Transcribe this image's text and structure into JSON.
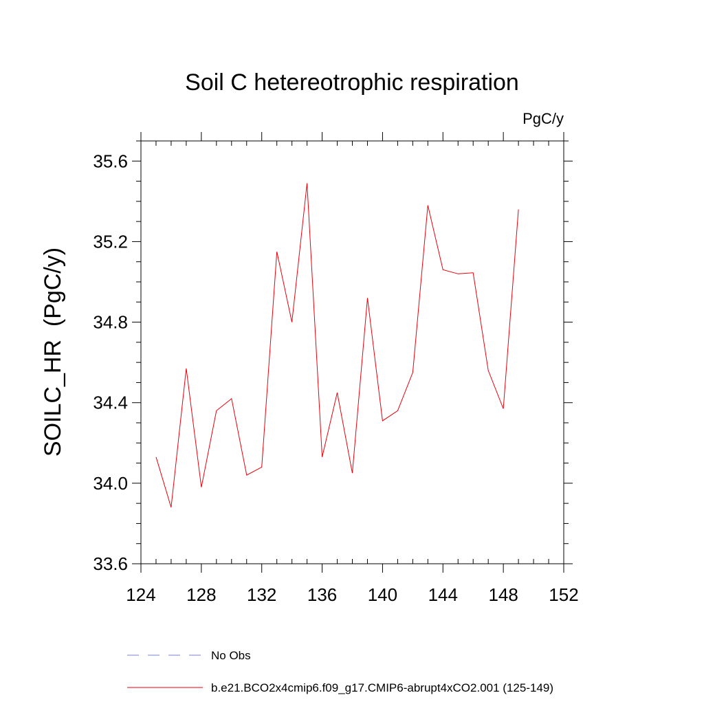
{
  "chart_data": {
    "type": "line",
    "title": "Soil C hetereotrophic respiration",
    "units_label": "PgC/y",
    "xlabel": "",
    "ylabel": "SOILC_HR  (PgC/y)",
    "xlim": [
      124,
      152
    ],
    "ylim": [
      33.6,
      35.7
    ],
    "x_ticks": [
      124,
      128,
      132,
      136,
      140,
      144,
      148,
      152
    ],
    "x_tick_labels": [
      "124",
      "128",
      "132",
      "136",
      "140",
      "144",
      "148",
      "152"
    ],
    "y_ticks": [
      33.6,
      34.0,
      34.4,
      34.8,
      35.2,
      35.6
    ],
    "y_tick_labels": [
      "33.6",
      "34.0",
      "34.4",
      "34.8",
      "35.2",
      "35.6"
    ],
    "x_minor_step": 1,
    "y_minor_step": 0.1,
    "grid": false,
    "legend": [
      {
        "label": "No Obs",
        "color": "#7d7dd6",
        "style": "dashed"
      },
      {
        "label": "b.e21.BCO2x4cmip6.f09_g17.CMIP6-abrupt4xCO2.001 (125-149)",
        "color": "#e8000b",
        "style": "solid"
      }
    ],
    "series": [
      {
        "name": "b.e21.BCO2x4cmip6.f09_g17.CMIP6-abrupt4xCO2.001 (125-149)",
        "color": "#e8000b",
        "x": [
          125,
          126,
          127,
          128,
          129,
          130,
          131,
          132,
          133,
          134,
          135,
          136,
          137,
          138,
          139,
          140,
          141,
          142,
          143,
          144,
          145,
          146,
          147,
          148,
          149
        ],
        "values": [
          34.13,
          33.88,
          34.57,
          33.98,
          34.36,
          34.42,
          34.04,
          34.08,
          35.15,
          34.8,
          35.49,
          34.13,
          34.45,
          34.05,
          34.92,
          34.31,
          34.36,
          34.55,
          35.38,
          35.06,
          35.04,
          35.045,
          34.56,
          34.37,
          35.36
        ]
      }
    ]
  }
}
